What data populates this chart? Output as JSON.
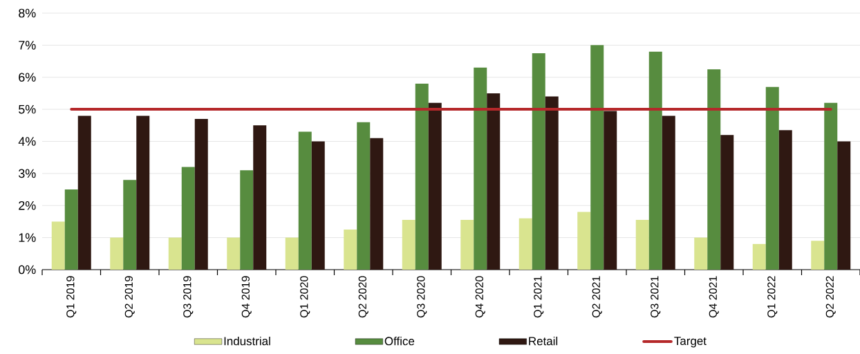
{
  "chart_data": {
    "type": "bar",
    "categories": [
      "Q1 2019",
      "Q2 2019",
      "Q3 2019",
      "Q4 2019",
      "Q1 2020",
      "Q2 2020",
      "Q3 2020",
      "Q4 2020",
      "Q1 2021",
      "Q2 2021",
      "Q3 2021",
      "Q4 2021",
      "Q1 2022",
      "Q2 2022"
    ],
    "series": [
      {
        "name": "Industrial",
        "color": "#d9e48f",
        "values": [
          1.5,
          1.0,
          1.0,
          1.0,
          1.0,
          1.25,
          1.55,
          1.55,
          1.6,
          1.8,
          1.55,
          1.0,
          0.8,
          0.9
        ]
      },
      {
        "name": "Office",
        "color": "#578c3f",
        "values": [
          2.5,
          2.8,
          3.2,
          3.1,
          4.3,
          4.6,
          5.8,
          6.3,
          6.75,
          7.0,
          6.8,
          6.25,
          5.7,
          5.2
        ]
      },
      {
        "name": "Retail",
        "color": "#2f1812",
        "values": [
          4.8,
          4.8,
          4.7,
          4.5,
          4.0,
          4.1,
          5.2,
          5.5,
          5.4,
          4.95,
          4.8,
          4.2,
          4.35,
          4.0
        ]
      },
      {
        "name": "Target",
        "type": "line",
        "color": "#b5282a",
        "values": [
          5,
          5,
          5,
          5,
          5,
          5,
          5,
          5,
          5,
          5,
          5,
          5,
          5,
          5
        ]
      }
    ],
    "ylim": [
      0,
      8
    ],
    "yticks": [
      {
        "value": 0,
        "label": "0%"
      },
      {
        "value": 1,
        "label": "1%"
      },
      {
        "value": 2,
        "label": "2%"
      },
      {
        "value": 3,
        "label": "3%"
      },
      {
        "value": 4,
        "label": "4%"
      },
      {
        "value": 5,
        "label": "5%"
      },
      {
        "value": 6,
        "label": "6%"
      },
      {
        "value": 7,
        "label": "7%"
      },
      {
        "value": 8,
        "label": "8%"
      }
    ],
    "grid": "y",
    "legend": "bottom",
    "marker": "none"
  }
}
